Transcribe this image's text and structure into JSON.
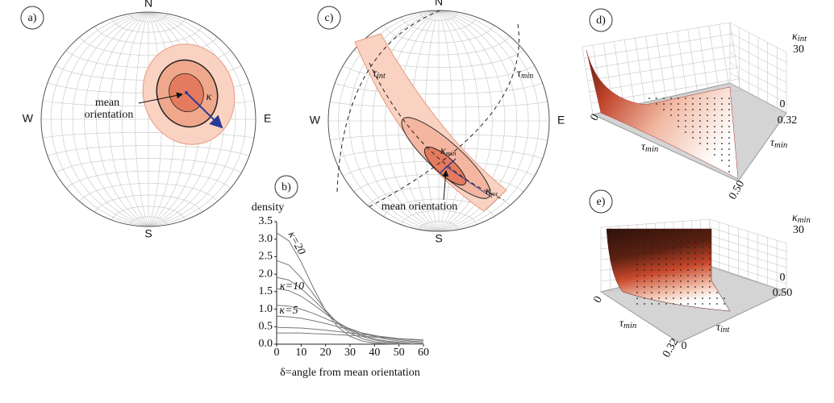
{
  "chart_data": {
    "type": "line",
    "label": "b)",
    "ylabel": "density",
    "xlabel": "δ=angle from mean orientation",
    "x": [
      0,
      5,
      10,
      15,
      20,
      25,
      30,
      35,
      40,
      45,
      50,
      55,
      60
    ],
    "xlim": [
      0,
      60
    ],
    "ylim": [
      0,
      3.5
    ],
    "xticks": [
      0,
      10,
      20,
      30,
      40,
      50,
      60
    ],
    "yticks": [
      {
        "value": 0,
        "label": "0.0"
      },
      {
        "value": 0.5,
        "label": "0.5"
      },
      {
        "value": 1,
        "label": "1.0"
      },
      {
        "value": 1.5,
        "label": "1.5"
      },
      {
        "value": 2,
        "label": "2.0"
      },
      {
        "value": 2.5,
        "label": "2.5"
      },
      {
        "value": 3,
        "label": "3.0"
      },
      {
        "value": 3.5,
        "label": "3.5"
      }
    ],
    "color": "#777777",
    "series": [
      {
        "values": [
          3.18,
          2.95,
          2.35,
          1.61,
          0.95,
          0.49,
          0.22,
          0.09,
          0.03,
          0.01,
          0.0,
          0.0,
          0.0
        ]
      },
      {
        "values": [
          2.39,
          2.26,
          1.9,
          1.43,
          0.97,
          0.59,
          0.32,
          0.16,
          0.07,
          0.03,
          0.01,
          0.0,
          0.0
        ]
      },
      {
        "values": [
          1.91,
          1.83,
          1.59,
          1.27,
          0.93,
          0.62,
          0.38,
          0.22,
          0.12,
          0.06,
          0.03,
          0.01,
          0.01
        ]
      },
      {
        "values": [
          1.59,
          1.53,
          1.37,
          1.13,
          0.87,
          0.62,
          0.42,
          0.26,
          0.15,
          0.09,
          0.05,
          0.02,
          0.01
        ]
      },
      {
        "values": [
          1.11,
          1.09,
          1.0,
          0.88,
          0.73,
          0.58,
          0.44,
          0.31,
          0.22,
          0.14,
          0.09,
          0.06,
          0.03
        ]
      },
      {
        "values": [
          0.8,
          0.78,
          0.74,
          0.67,
          0.59,
          0.5,
          0.41,
          0.32,
          0.25,
          0.18,
          0.13,
          0.09,
          0.07
        ]
      },
      {
        "values": [
          0.48,
          0.47,
          0.46,
          0.43,
          0.4,
          0.36,
          0.32,
          0.28,
          0.24,
          0.2,
          0.16,
          0.13,
          0.11
        ]
      },
      {
        "values": [
          0.32,
          0.32,
          0.32,
          0.3,
          0.29,
          0.27,
          0.25,
          0.23,
          0.2,
          0.18,
          0.16,
          0.14,
          0.12
        ]
      }
    ],
    "annotations": [
      "κ=20",
      "κ=10",
      "κ=5"
    ]
  },
  "panels": {
    "a": {
      "label": "a)",
      "compass": [
        "N",
        "E",
        "S",
        "W"
      ],
      "mean_label": [
        "mean",
        "orientation"
      ],
      "kappa": "κ"
    },
    "c": {
      "label": "c)",
      "compass": [
        "N",
        "E",
        "S",
        "W"
      ],
      "mean_label": "mean orientation",
      "tau_int": {
        "symbol": "τ",
        "sub": "int"
      },
      "tau_min": {
        "symbol": "τ",
        "sub": "min"
      },
      "kappa_min": {
        "symbol": "κ",
        "sub": "min"
      },
      "kappa_int": {
        "symbol": "κ",
        "sub": "int"
      }
    },
    "d": {
      "label": "d)",
      "z_axis": {
        "symbol": "κ",
        "sub": "int"
      },
      "z_ticks": [
        "30",
        "0"
      ],
      "right_axis": {
        "symbol": "τ",
        "sub": "min"
      },
      "right_ticks": [
        "0.32"
      ],
      "front_axis": {
        "symbol": "τ",
        "sub": "min"
      },
      "front_ticks": [
        "0",
        "0.50"
      ]
    },
    "e": {
      "label": "e)",
      "z_axis": {
        "symbol": "κ",
        "sub": "min"
      },
      "z_ticks": [
        "30",
        "0"
      ],
      "right_ticks": [
        "0.50"
      ],
      "left_axis": {
        "symbol": "τ",
        "sub": "min"
      },
      "left_ticks": [
        "0",
        "0.32"
      ],
      "front_axis": {
        "symbol": "τ",
        "sub": "int"
      },
      "front_ticks": [
        "0"
      ]
    }
  }
}
